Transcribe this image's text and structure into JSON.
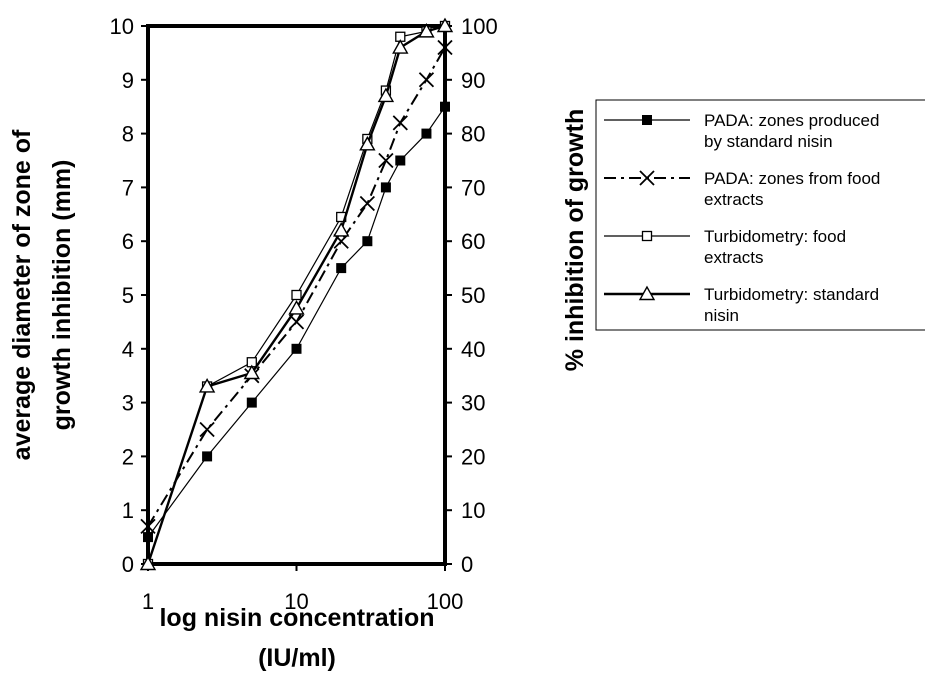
{
  "chart_data": {
    "type": "line",
    "title": "",
    "xlabel": [
      "log nisin concentration",
      "(IU/ml)"
    ],
    "ylabel_left": [
      "average diameter of zone of",
      "growth inhibition (mm)"
    ],
    "ylabel_right": "% inhibition of growth",
    "x_scale": "log",
    "xlim": [
      1,
      100
    ],
    "ylim_left": [
      0,
      10
    ],
    "ylim_right": [
      0,
      100
    ],
    "x_ticks": [
      "1",
      "10",
      "100"
    ],
    "y_left_ticks": [
      "0",
      "1",
      "2",
      "3",
      "4",
      "5",
      "6",
      "7",
      "8",
      "9",
      "10"
    ],
    "y_right_ticks": [
      "0",
      "10",
      "20",
      "30",
      "40",
      "50",
      "60",
      "70",
      "80",
      "90",
      "100"
    ],
    "grid": false,
    "legend_position": "right",
    "series": [
      {
        "name": [
          "PADA: zones produced",
          "by standard nisin"
        ],
        "axis": "left",
        "marker": "filled-square",
        "line": "thin",
        "x": [
          1,
          2.5,
          5,
          10,
          20,
          30,
          40,
          50,
          75,
          100
        ],
        "y": [
          0.5,
          2,
          3,
          4,
          5.5,
          6,
          7,
          7.5,
          8,
          8.5
        ]
      },
      {
        "name": [
          "PADA: zones from food",
          "extracts"
        ],
        "axis": "left",
        "marker": "cross",
        "line": "dash-dot",
        "x": [
          1,
          2.5,
          5,
          10,
          20,
          30,
          40,
          50,
          75,
          100
        ],
        "y": [
          0.7,
          2.5,
          3.5,
          4.5,
          6,
          6.7,
          7.5,
          8.2,
          9,
          9.6
        ]
      },
      {
        "name": [
          "Turbidometry: food",
          "extracts"
        ],
        "axis": "right",
        "marker": "open-square",
        "line": "thin",
        "x": [
          1,
          2.5,
          5,
          10,
          20,
          30,
          40,
          50,
          75,
          100
        ],
        "y": [
          0,
          33,
          37.5,
          50,
          64.5,
          79,
          88,
          98,
          99,
          100
        ]
      },
      {
        "name": [
          "Turbidometry: standard",
          "nisin"
        ],
        "axis": "right",
        "marker": "open-triangle",
        "line": "thick",
        "x": [
          1,
          2.5,
          5,
          10,
          20,
          30,
          40,
          50,
          75,
          100
        ],
        "y": [
          0,
          33,
          35.5,
          47.5,
          62,
          78,
          87,
          96,
          99,
          100
        ]
      }
    ]
  }
}
